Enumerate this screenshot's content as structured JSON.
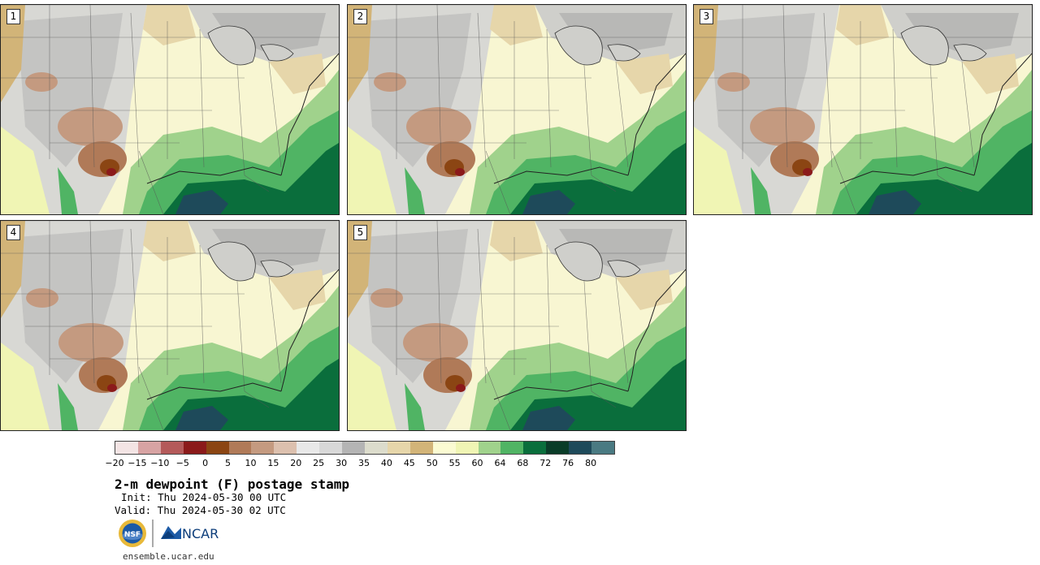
{
  "panels": [
    {
      "label": "1"
    },
    {
      "label": "2"
    },
    {
      "label": "3"
    },
    {
      "label": "4"
    },
    {
      "label": "5"
    }
  ],
  "colorbar": {
    "colors": [
      "#f3e4e4",
      "#d7a3a3",
      "#b45a5a",
      "#8b1a1a",
      "#8b4513",
      "#b07a58",
      "#c49a80",
      "#dcc0ae",
      "#e8e8e8",
      "#d8d8d8",
      "#b4b4b4",
      "#dcdccc",
      "#e6d6aa",
      "#d2b478",
      "#fbfbd2",
      "#f0f5b4",
      "#a0d28c",
      "#50b464",
      "#0a6e3c",
      "#0a3c28",
      "#1e4a5a",
      "#4a7a82"
    ],
    "tick_labels": [
      "−20",
      "−15",
      "−10",
      "−5",
      "0",
      "5",
      "10",
      "15",
      "20",
      "25",
      "30",
      "35",
      "40",
      "45",
      "50",
      "55",
      "60",
      "64",
      "68",
      "72",
      "76",
      "80"
    ]
  },
  "title": "2-m dewpoint (F) postage stamp",
  "init": "Init: Thu 2024-05-30 00 UTC",
  "valid": "Valid: Thu 2024-05-30 02 UTC",
  "logos": {
    "left": "NSF",
    "right": "NCAR"
  },
  "footer_url": "ensemble.ucar.edu"
}
